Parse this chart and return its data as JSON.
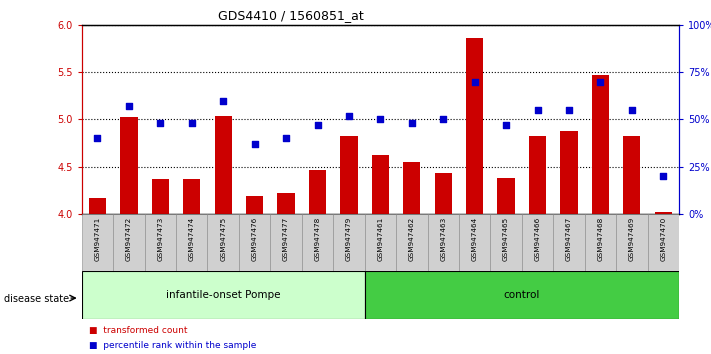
{
  "title": "GDS4410 / 1560851_at",
  "samples": [
    "GSM947471",
    "GSM947472",
    "GSM947473",
    "GSM947474",
    "GSM947475",
    "GSM947476",
    "GSM947477",
    "GSM947478",
    "GSM947479",
    "GSM947461",
    "GSM947462",
    "GSM947463",
    "GSM947464",
    "GSM947465",
    "GSM947466",
    "GSM947467",
    "GSM947468",
    "GSM947469",
    "GSM947470"
  ],
  "bar_values": [
    4.17,
    5.03,
    4.37,
    4.37,
    5.04,
    4.19,
    4.22,
    4.47,
    4.83,
    4.63,
    4.55,
    4.43,
    5.86,
    4.38,
    4.83,
    4.88,
    5.47,
    4.83,
    4.02
  ],
  "percentile_values": [
    40,
    57,
    48,
    48,
    60,
    37,
    40,
    47,
    52,
    50,
    48,
    50,
    70,
    47,
    55,
    55,
    70,
    55,
    20
  ],
  "group1_count": 9,
  "group2_count": 10,
  "group1_label": "infantile-onset Pompe",
  "group2_label": "control",
  "disease_state_label": "disease state",
  "ylim_left": [
    4.0,
    6.0
  ],
  "ylim_right": [
    0,
    100
  ],
  "yticks_left": [
    4.0,
    4.5,
    5.0,
    5.5,
    6.0
  ],
  "yticks_right": [
    0,
    25,
    50,
    75,
    100
  ],
  "ytick_labels_right": [
    "0%",
    "25%",
    "50%",
    "75%",
    "100%"
  ],
  "bar_color": "#cc0000",
  "dot_color": "#0000cc",
  "bar_baseline": 4.0,
  "group1_bg": "#ccffcc",
  "group2_bg": "#44cc44",
  "xticklabel_bg": "#d0d0d0",
  "legend_bar_label": "transformed count",
  "legend_dot_label": "percentile rank within the sample"
}
